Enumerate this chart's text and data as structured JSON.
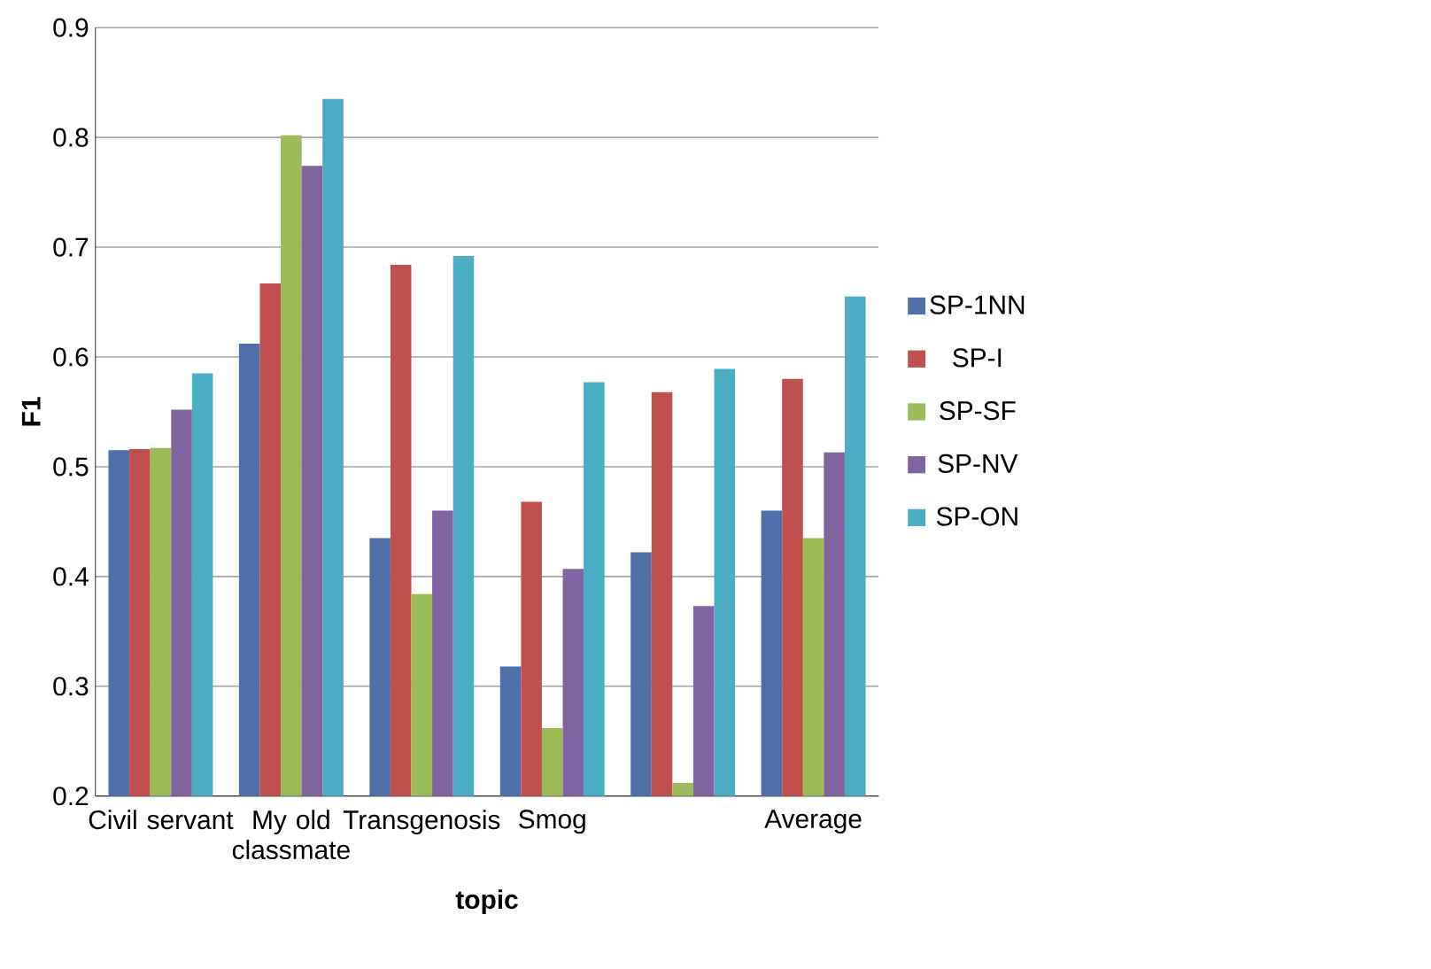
{
  "chart_data": {
    "type": "bar",
    "xlabel": "topic",
    "ylabel": "F1",
    "categories": [
      "Civil servant",
      "My old classmate",
      "Transgenosis",
      "Smog",
      null,
      "Average"
    ],
    "series": [
      {
        "name": "SP-1NN",
        "color": "#4f6fa8",
        "values": [
          0.515,
          0.612,
          0.435,
          0.318,
          0.422,
          0.46
        ]
      },
      {
        "name": "SP-I",
        "color": "#c0504d",
        "values": [
          0.516,
          0.667,
          0.684,
          0.468,
          0.568,
          0.58
        ]
      },
      {
        "name": "SP-SF",
        "color": "#9bbb59",
        "values": [
          0.517,
          0.802,
          0.384,
          0.262,
          0.212,
          0.435
        ]
      },
      {
        "name": "SP-NV",
        "color": "#8064a2",
        "values": [
          0.552,
          0.774,
          0.46,
          0.407,
          0.373,
          0.513
        ]
      },
      {
        "name": "SP-ON",
        "color": "#4bacc6",
        "values": [
          0.585,
          0.835,
          0.692,
          0.577,
          0.589,
          0.655
        ]
      }
    ],
    "ylim": [
      0.2,
      0.9
    ],
    "yticks": [
      0.2,
      0.3,
      0.4,
      0.5,
      0.6,
      0.7,
      0.8,
      0.9
    ],
    "grid": "y",
    "legend": "right"
  }
}
